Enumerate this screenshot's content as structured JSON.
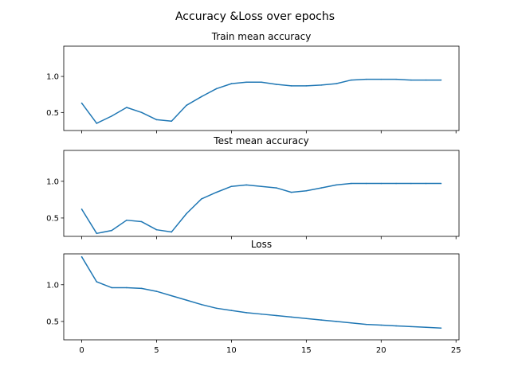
{
  "figure": {
    "suptitle": "Accuracy &Loss over epochs"
  },
  "chart_data": [
    {
      "type": "line",
      "title": "Train mean accuracy",
      "xlabel": "",
      "ylabel": "",
      "xlim": [
        -1.2,
        25.2
      ],
      "ylim": [
        0.25,
        1.42
      ],
      "xticks": [
        0,
        5,
        10,
        15,
        20,
        25
      ],
      "xticklabels_visible": false,
      "yticks": [
        0.5,
        1.0
      ],
      "ytick_labels": [
        "0.5",
        "1.0"
      ],
      "grid": false,
      "color": "#1f77b4",
      "x": [
        0,
        1,
        2,
        3,
        4,
        5,
        6,
        7,
        8,
        9,
        10,
        11,
        12,
        13,
        14,
        15,
        16,
        17,
        18,
        19,
        20,
        21,
        22,
        23,
        24
      ],
      "y": [
        0.63,
        0.35,
        0.45,
        0.57,
        0.5,
        0.4,
        0.38,
        0.6,
        0.72,
        0.83,
        0.9,
        0.92,
        0.92,
        0.89,
        0.87,
        0.87,
        0.88,
        0.9,
        0.95,
        0.96,
        0.96,
        0.96,
        0.95,
        0.95,
        0.95
      ]
    },
    {
      "type": "line",
      "title": "Test mean accuracy",
      "xlabel": "",
      "ylabel": "",
      "xlim": [
        -1.2,
        25.2
      ],
      "ylim": [
        0.25,
        1.42
      ],
      "xticks": [
        0,
        5,
        10,
        15,
        20,
        25
      ],
      "xticklabels_visible": false,
      "yticks": [
        0.5,
        1.0
      ],
      "ytick_labels": [
        "0.5",
        "1.0"
      ],
      "grid": false,
      "color": "#1f77b4",
      "x": [
        0,
        1,
        2,
        3,
        4,
        5,
        6,
        7,
        8,
        9,
        10,
        11,
        12,
        13,
        14,
        15,
        16,
        17,
        18,
        19,
        20,
        21,
        22,
        23,
        24
      ],
      "y": [
        0.62,
        0.29,
        0.33,
        0.47,
        0.45,
        0.34,
        0.31,
        0.56,
        0.76,
        0.85,
        0.93,
        0.95,
        0.93,
        0.91,
        0.85,
        0.87,
        0.91,
        0.95,
        0.97,
        0.97,
        0.97,
        0.97,
        0.97,
        0.97,
        0.97
      ]
    },
    {
      "type": "line",
      "title": "Loss",
      "xlabel": "",
      "ylabel": "",
      "xlim": [
        -1.2,
        25.2
      ],
      "ylim": [
        0.25,
        1.42
      ],
      "xticks": [
        0,
        5,
        10,
        15,
        20,
        25
      ],
      "xticklabels_visible": true,
      "xtick_labels": [
        "0",
        "5",
        "10",
        "15",
        "20",
        "25"
      ],
      "yticks": [
        0.5,
        1.0
      ],
      "ytick_labels": [
        "0.5",
        "1.0"
      ],
      "grid": false,
      "color": "#1f77b4",
      "x": [
        0,
        1,
        2,
        3,
        4,
        5,
        6,
        7,
        8,
        9,
        10,
        11,
        12,
        13,
        14,
        15,
        16,
        17,
        18,
        19,
        20,
        21,
        22,
        23,
        24
      ],
      "y": [
        1.38,
        1.04,
        0.96,
        0.96,
        0.95,
        0.91,
        0.85,
        0.79,
        0.73,
        0.68,
        0.65,
        0.62,
        0.6,
        0.58,
        0.56,
        0.54,
        0.52,
        0.5,
        0.48,
        0.46,
        0.45,
        0.44,
        0.43,
        0.42,
        0.41
      ]
    }
  ]
}
